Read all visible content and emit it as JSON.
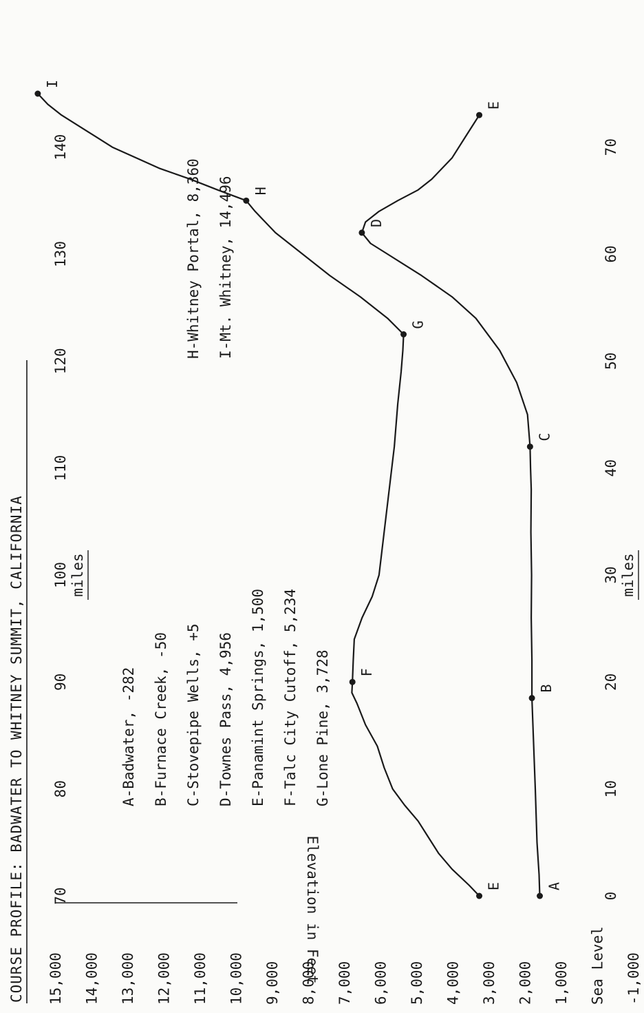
{
  "chart_data": {
    "type": "line",
    "title": "COURSE PROFILE:  BADWATER TO WHITNEY SUMMIT, CALIFORNIA",
    "ylabel": "Elevation in Feet",
    "y_tick_labels": [
      "15,000",
      "14,000",
      "13,000",
      "12,000",
      "11,000",
      "10,000",
      "9,000",
      "8,000",
      "7,000",
      "6,000",
      "5,000",
      "4,000",
      "3,000",
      "2,000",
      "1,000",
      "Sea Level",
      "-1,000"
    ],
    "ylim": [
      -1000,
      15000
    ],
    "x_bottom": {
      "label": "miles",
      "ticks": [
        0,
        10,
        20,
        30,
        40,
        50,
        60,
        70
      ],
      "range": [
        0,
        75
      ]
    },
    "x_top": {
      "label": "miles",
      "ticks": [
        70,
        80,
        90,
        100,
        110,
        120,
        130,
        140
      ],
      "range": [
        70,
        145
      ]
    },
    "legend": [
      "A-Badwater, -282",
      "B-Furnace Creek, -50",
      "C-Stovepipe Wells, +5",
      "D-Townes Pass, 4,956",
      "E-Panamint Springs, 1,500",
      "F-Talc City Cutoff, 5,234",
      "G-Lone Pine, 3,728",
      "H-Whitney Portal, 8,360",
      "I-Mt. Whitney, 14,496"
    ],
    "series": [
      {
        "axis": "bottom",
        "points": [
          {
            "x": 0,
            "y": -282,
            "label": "A"
          },
          {
            "x": 2,
            "y": -260
          },
          {
            "x": 5,
            "y": -200
          },
          {
            "x": 10,
            "y": -150
          },
          {
            "x": 15,
            "y": -90
          },
          {
            "x": 18.5,
            "y": -50,
            "label": "B"
          },
          {
            "x": 22,
            "y": -50
          },
          {
            "x": 26,
            "y": -30
          },
          {
            "x": 30,
            "y": -40
          },
          {
            "x": 34,
            "y": -20
          },
          {
            "x": 38,
            "y": -30
          },
          {
            "x": 40,
            "y": -10
          },
          {
            "x": 42,
            "y": 5,
            "label": "C"
          },
          {
            "x": 45,
            "y": 80
          },
          {
            "x": 48,
            "y": 400
          },
          {
            "x": 51,
            "y": 900
          },
          {
            "x": 54,
            "y": 1600
          },
          {
            "x": 56,
            "y": 2300
          },
          {
            "x": 58,
            "y": 3200
          },
          {
            "x": 60,
            "y": 4200
          },
          {
            "x": 61,
            "y": 4700
          },
          {
            "x": 62,
            "y": 4956,
            "label": "D"
          },
          {
            "x": 63,
            "y": 4850
          },
          {
            "x": 64,
            "y": 4450
          },
          {
            "x": 65,
            "y": 3900
          },
          {
            "x": 66,
            "y": 3300
          },
          {
            "x": 67,
            "y": 2900
          },
          {
            "x": 69,
            "y": 2300
          },
          {
            "x": 71,
            "y": 1900
          },
          {
            "x": 73,
            "y": 1500,
            "label": "E"
          }
        ]
      },
      {
        "axis": "top",
        "points": [
          {
            "x": 70,
            "y": 1500,
            "label": "E"
          },
          {
            "x": 71,
            "y": 1800
          },
          {
            "x": 72.5,
            "y": 2300
          },
          {
            "x": 74,
            "y": 2700
          },
          {
            "x": 75.5,
            "y": 3000
          },
          {
            "x": 77,
            "y": 3300
          },
          {
            "x": 78.5,
            "y": 3700
          },
          {
            "x": 80,
            "y": 4050
          },
          {
            "x": 82,
            "y": 4300
          },
          {
            "x": 84,
            "y": 4500
          },
          {
            "x": 86,
            "y": 4850
          },
          {
            "x": 88,
            "y": 5100
          },
          {
            "x": 89,
            "y": 5250
          },
          {
            "x": 90,
            "y": 5234,
            "label": "F"
          },
          {
            "x": 92,
            "y": 5210
          },
          {
            "x": 94,
            "y": 5180
          },
          {
            "x": 96,
            "y": 4950
          },
          {
            "x": 98,
            "y": 4650
          },
          {
            "x": 100,
            "y": 4450
          },
          {
            "x": 104,
            "y": 4300
          },
          {
            "x": 108,
            "y": 4150
          },
          {
            "x": 112,
            "y": 4000
          },
          {
            "x": 116,
            "y": 3900
          },
          {
            "x": 119,
            "y": 3800
          },
          {
            "x": 121,
            "y": 3750
          },
          {
            "x": 122.5,
            "y": 3728,
            "label": "G"
          },
          {
            "x": 124,
            "y": 4200
          },
          {
            "x": 126,
            "y": 5000
          },
          {
            "x": 128,
            "y": 5900
          },
          {
            "x": 130,
            "y": 6700
          },
          {
            "x": 132,
            "y": 7500
          },
          {
            "x": 134,
            "y": 8100
          },
          {
            "x": 135,
            "y": 8360,
            "label": "H"
          },
          {
            "x": 136,
            "y": 9200
          },
          {
            "x": 137,
            "y": 10000
          },
          {
            "x": 138,
            "y": 10900
          },
          {
            "x": 139,
            "y": 11600
          },
          {
            "x": 140,
            "y": 12300
          },
          {
            "x": 141,
            "y": 12800
          },
          {
            "x": 142,
            "y": 13300
          },
          {
            "x": 143,
            "y": 13800
          },
          {
            "x": 144,
            "y": 14200
          },
          {
            "x": 145,
            "y": 14496,
            "label": "I"
          }
        ]
      }
    ]
  }
}
